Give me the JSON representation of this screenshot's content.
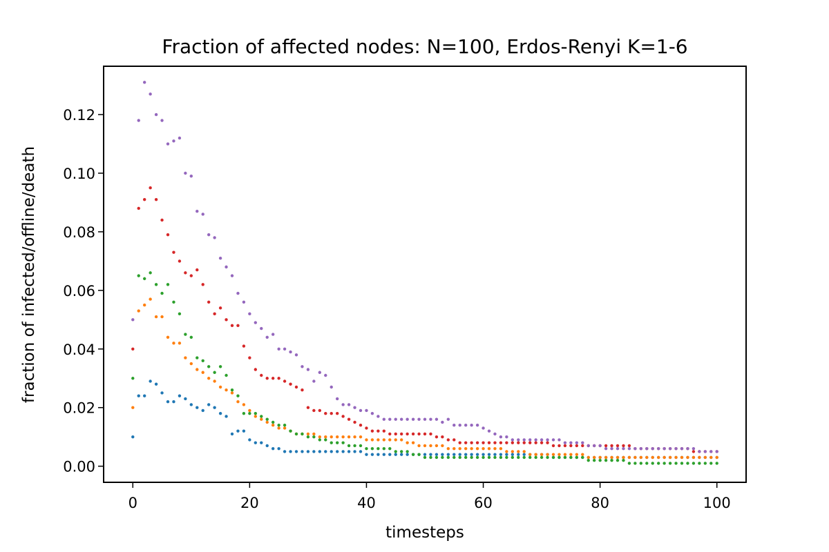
{
  "chart_data": {
    "type": "scatter",
    "title": "Fraction of affected nodes: N=100, Erdos-Renyi K=1-6",
    "xlabel": "timesteps",
    "ylabel": "fraction of infected/offline/death",
    "xlim": [
      -5,
      105
    ],
    "ylim": [
      -0.0055,
      0.1365
    ],
    "x_ticks": [
      0,
      20,
      40,
      60,
      80,
      100
    ],
    "x_tick_labels": [
      "0",
      "20",
      "40",
      "60",
      "80",
      "100"
    ],
    "y_ticks": [
      0.0,
      0.02,
      0.04,
      0.06,
      0.08,
      0.1,
      0.12
    ],
    "y_tick_labels": [
      "0.00",
      "0.02",
      "0.04",
      "0.06",
      "0.08",
      "0.10",
      "0.12"
    ],
    "grid": false,
    "legend": "none",
    "x": [
      0,
      1,
      2,
      3,
      4,
      5,
      6,
      7,
      8,
      9,
      10,
      11,
      12,
      13,
      14,
      15,
      16,
      17,
      18,
      19,
      20,
      21,
      22,
      23,
      24,
      25,
      26,
      27,
      28,
      29,
      30,
      31,
      32,
      33,
      34,
      35,
      36,
      37,
      38,
      39,
      40,
      41,
      42,
      43,
      44,
      45,
      46,
      47,
      48,
      49,
      50,
      51,
      52,
      53,
      54,
      55,
      56,
      57,
      58,
      59,
      60,
      61,
      62,
      63,
      64,
      65,
      66,
      67,
      68,
      69,
      70,
      71,
      72,
      73,
      74,
      75,
      76,
      77,
      78,
      79,
      80,
      81,
      82,
      83,
      84,
      85,
      86,
      87,
      88,
      89,
      90,
      91,
      92,
      93,
      94,
      95,
      96,
      97,
      98,
      99,
      100
    ],
    "series": [
      {
        "color": "#1f77b4",
        "values": [
          0.01,
          0.024,
          0.024,
          0.029,
          0.028,
          0.025,
          0.022,
          0.022,
          0.024,
          0.023,
          0.021,
          0.02,
          0.019,
          0.021,
          0.02,
          0.018,
          0.017,
          0.011,
          0.012,
          0.012,
          0.009,
          0.008,
          0.008,
          0.007,
          0.006,
          0.006,
          0.005,
          0.005,
          0.005,
          0.005,
          0.005,
          0.005,
          0.005,
          0.005,
          0.005,
          0.005,
          0.005,
          0.005,
          0.005,
          0.005,
          0.004,
          0.004,
          0.004,
          0.004,
          0.004,
          0.004,
          0.004,
          0.004,
          0.004,
          0.004,
          0.004,
          0.004,
          0.004,
          0.004,
          0.004,
          0.004,
          0.004,
          0.004,
          0.004,
          0.004,
          0.004,
          0.004,
          0.004,
          0.004,
          0.004,
          0.004,
          0.004,
          0.004,
          0.004,
          0.004,
          0.004,
          0.004,
          0.003,
          0.003,
          0.003,
          0.003,
          0.003,
          0.003,
          0.003,
          0.003,
          0.003,
          0.003,
          0.003,
          0.003,
          0.003,
          0.003,
          0.003,
          0.003,
          0.003,
          0.003,
          0.003,
          0.003,
          0.003,
          0.003,
          0.003,
          0.003,
          0.003,
          0.003,
          0.003,
          0.003,
          0.003
        ]
      },
      {
        "color": "#ff7f0e",
        "values": [
          0.02,
          0.053,
          0.055,
          0.057,
          0.051,
          0.051,
          0.044,
          0.042,
          0.042,
          0.037,
          0.035,
          0.033,
          0.032,
          0.03,
          0.029,
          0.027,
          0.026,
          0.025,
          0.022,
          0.021,
          0.019,
          0.017,
          0.016,
          0.015,
          0.014,
          0.013,
          0.013,
          0.012,
          0.011,
          0.011,
          0.011,
          0.011,
          0.01,
          0.01,
          0.01,
          0.01,
          0.01,
          0.01,
          0.01,
          0.01,
          0.009,
          0.009,
          0.009,
          0.009,
          0.009,
          0.009,
          0.009,
          0.008,
          0.008,
          0.007,
          0.007,
          0.007,
          0.007,
          0.007,
          0.006,
          0.006,
          0.006,
          0.006,
          0.006,
          0.006,
          0.006,
          0.006,
          0.006,
          0.006,
          0.005,
          0.005,
          0.005,
          0.005,
          0.004,
          0.004,
          0.004,
          0.004,
          0.004,
          0.004,
          0.004,
          0.004,
          0.004,
          0.004,
          0.003,
          0.003,
          0.003,
          0.003,
          0.003,
          0.003,
          0.003,
          0.003,
          0.003,
          0.003,
          0.003,
          0.003,
          0.003,
          0.003,
          0.003,
          0.003,
          0.003,
          0.003,
          0.003,
          0.003,
          0.003,
          0.003,
          0.003
        ]
      },
      {
        "color": "#2ca02c",
        "values": [
          0.03,
          0.065,
          0.064,
          0.066,
          0.062,
          0.059,
          0.062,
          0.056,
          0.052,
          0.045,
          0.044,
          0.037,
          0.036,
          0.034,
          0.032,
          0.034,
          0.031,
          0.026,
          0.024,
          0.018,
          0.018,
          0.018,
          0.017,
          0.016,
          0.015,
          0.014,
          0.014,
          0.012,
          0.011,
          0.011,
          0.01,
          0.01,
          0.009,
          0.009,
          0.008,
          0.008,
          0.008,
          0.007,
          0.007,
          0.007,
          0.006,
          0.006,
          0.006,
          0.006,
          0.006,
          0.005,
          0.005,
          0.005,
          0.004,
          0.004,
          0.003,
          0.003,
          0.003,
          0.003,
          0.003,
          0.003,
          0.003,
          0.003,
          0.003,
          0.003,
          0.003,
          0.003,
          0.003,
          0.003,
          0.003,
          0.003,
          0.003,
          0.003,
          0.003,
          0.003,
          0.003,
          0.003,
          0.003,
          0.003,
          0.003,
          0.003,
          0.003,
          0.003,
          0.002,
          0.002,
          0.002,
          0.002,
          0.002,
          0.002,
          0.002,
          0.001,
          0.001,
          0.001,
          0.001,
          0.001,
          0.001,
          0.001,
          0.001,
          0.001,
          0.001,
          0.001,
          0.001,
          0.001,
          0.001,
          0.001,
          0.001
        ]
      },
      {
        "color": "#d62728",
        "values": [
          0.04,
          0.088,
          0.091,
          0.095,
          0.091,
          0.084,
          0.079,
          0.073,
          0.07,
          0.066,
          0.065,
          0.067,
          0.062,
          0.056,
          0.052,
          0.054,
          0.05,
          0.048,
          0.048,
          0.041,
          0.037,
          0.033,
          0.031,
          0.03,
          0.03,
          0.03,
          0.029,
          0.028,
          0.027,
          0.026,
          0.02,
          0.019,
          0.019,
          0.018,
          0.018,
          0.018,
          0.017,
          0.016,
          0.015,
          0.014,
          0.013,
          0.012,
          0.012,
          0.012,
          0.011,
          0.011,
          0.011,
          0.011,
          0.011,
          0.011,
          0.011,
          0.011,
          0.01,
          0.01,
          0.009,
          0.009,
          0.008,
          0.008,
          0.008,
          0.008,
          0.008,
          0.008,
          0.008,
          0.008,
          0.008,
          0.008,
          0.008,
          0.008,
          0.008,
          0.008,
          0.008,
          0.008,
          0.007,
          0.007,
          0.007,
          0.007,
          0.007,
          0.007,
          0.007,
          0.007,
          0.007,
          0.007,
          0.007,
          0.007,
          0.007,
          0.007,
          0.006,
          0.006,
          0.006,
          0.006,
          0.006,
          0.006,
          0.006,
          0.006,
          0.006,
          0.006,
          0.005,
          0.005,
          0.005,
          0.005,
          0.005
        ]
      },
      {
        "color": "#9467bd",
        "values": [
          0.05,
          0.118,
          0.131,
          0.127,
          0.12,
          0.118,
          0.11,
          0.111,
          0.112,
          0.1,
          0.099,
          0.087,
          0.086,
          0.079,
          0.078,
          0.071,
          0.068,
          0.065,
          0.059,
          0.056,
          0.052,
          0.049,
          0.047,
          0.044,
          0.045,
          0.04,
          0.04,
          0.039,
          0.038,
          0.034,
          0.033,
          0.029,
          0.032,
          0.031,
          0.027,
          0.023,
          0.021,
          0.021,
          0.02,
          0.019,
          0.019,
          0.018,
          0.017,
          0.016,
          0.016,
          0.016,
          0.016,
          0.016,
          0.016,
          0.016,
          0.016,
          0.016,
          0.016,
          0.015,
          0.016,
          0.014,
          0.014,
          0.014,
          0.014,
          0.014,
          0.013,
          0.012,
          0.011,
          0.01,
          0.01,
          0.009,
          0.009,
          0.009,
          0.009,
          0.009,
          0.009,
          0.009,
          0.009,
          0.009,
          0.008,
          0.008,
          0.008,
          0.008,
          0.007,
          0.007,
          0.007,
          0.006,
          0.006,
          0.006,
          0.006,
          0.006,
          0.006,
          0.006,
          0.006,
          0.006,
          0.006,
          0.006,
          0.006,
          0.006,
          0.006,
          0.006,
          0.006,
          0.005,
          0.005,
          0.005,
          0.005
        ]
      }
    ]
  }
}
